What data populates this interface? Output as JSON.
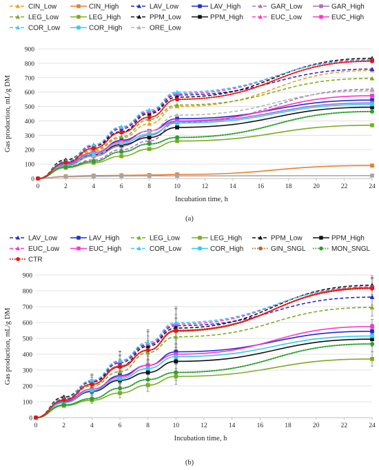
{
  "chart_data": [
    {
      "type": "line",
      "panel_label": "(a)",
      "xlabel": "Incubation time, h",
      "ylabel": "Gas production, mL/g DM",
      "xlim": [
        0,
        24
      ],
      "ylim": [
        0,
        900
      ],
      "xticks": [
        0,
        2,
        4,
        6,
        8,
        10,
        12,
        14,
        16,
        18,
        20,
        22,
        24
      ],
      "yticks": [
        0,
        100,
        200,
        300,
        400,
        500,
        600,
        700,
        800,
        900
      ],
      "x": [
        0,
        2,
        4,
        6,
        8,
        10,
        24
      ],
      "legend_position": "top",
      "series": [
        {
          "name": "CIN_Low",
          "color": "#f39c1f",
          "dash": "dash",
          "marker": "triangle",
          "values": [
            0,
            95,
            190,
            280,
            380,
            500,
            750
          ]
        },
        {
          "name": "CIN_High",
          "color": "#ed7d31",
          "dash": "solid",
          "marker": "square",
          "values": [
            0,
            15,
            20,
            22,
            24,
            28,
            90
          ]
        },
        {
          "name": "LAV_Low",
          "color": "#1f2bd6",
          "dash": "dash",
          "marker": "triangle",
          "values": [
            0,
            115,
            225,
            345,
            460,
            580,
            760
          ]
        },
        {
          "name": "LAV_High",
          "color": "#1f2bd6",
          "dash": "solid",
          "marker": "square",
          "values": [
            0,
            100,
            170,
            265,
            330,
            415,
            545
          ]
        },
        {
          "name": "GAR_Low",
          "color": "#a76fc4",
          "dash": "dash",
          "marker": "triangle",
          "values": [
            0,
            80,
            130,
            200,
            260,
            390,
            620
          ]
        },
        {
          "name": "GAR_High",
          "color": "#a76fc4",
          "dash": "solid",
          "marker": "square",
          "values": [
            0,
            90,
            155,
            225,
            300,
            395,
            525
          ]
        },
        {
          "name": "LEG_Low",
          "color": "#7aab22",
          "dash": "dash",
          "marker": "triangle",
          "values": [
            0,
            105,
            200,
            290,
            410,
            510,
            695
          ]
        },
        {
          "name": "LEG_High",
          "color": "#7aab22",
          "dash": "solid",
          "marker": "square",
          "values": [
            0,
            75,
            110,
            155,
            205,
            260,
            370
          ]
        },
        {
          "name": "PPM_Low",
          "color": "#111111",
          "dash": "dash",
          "marker": "triangle",
          "values": [
            0,
            130,
            225,
            325,
            450,
            565,
            835
          ]
        },
        {
          "name": "PPM_High",
          "color": "#111111",
          "dash": "solid",
          "marker": "square",
          "values": [
            0,
            95,
            165,
            235,
            285,
            355,
            495
          ]
        },
        {
          "name": "EUC_Low",
          "color": "#ff33cc",
          "dash": "dash",
          "marker": "triangle",
          "values": [
            0,
            120,
            230,
            355,
            465,
            590,
            825
          ]
        },
        {
          "name": "EUC_High",
          "color": "#ff33cc",
          "dash": "solid",
          "marker": "square",
          "values": [
            0,
            105,
            180,
            255,
            330,
            400,
            575
          ]
        },
        {
          "name": "COR_Low",
          "color": "#33ccf2",
          "dash": "dash",
          "marker": "triangle",
          "values": [
            0,
            120,
            235,
            360,
            475,
            600,
            820
          ]
        },
        {
          "name": "COR_High",
          "color": "#33ccf2",
          "dash": "solid",
          "marker": "square",
          "values": [
            0,
            95,
            170,
            245,
            310,
            385,
            515
          ]
        },
        {
          "name": "ORE_Low",
          "color": "#b3b3b3",
          "dash": "dash",
          "marker": "triangle",
          "values": [
            0,
            85,
            160,
            250,
            330,
            440,
            610
          ]
        },
        {
          "name": "",
          "color": "#a6a6a6",
          "dash": "solid",
          "marker": "square",
          "values": [
            0,
            12,
            15,
            17,
            18,
            18,
            20
          ]
        },
        {
          "name": "",
          "color": "#2ca02c",
          "dash": "dot",
          "marker": "circle",
          "values": [
            0,
            80,
            120,
            185,
            240,
            285,
            465
          ]
        },
        {
          "name": "",
          "color": "#ee1111",
          "dash": "dot",
          "marker": "circle",
          "values": [
            0,
            110,
            210,
            320,
            425,
            550,
            815
          ]
        }
      ]
    },
    {
      "type": "line",
      "panel_label": "(b)",
      "xlabel": "Incubation time, h",
      "ylabel": "Gas production, mL/g DM",
      "xlim": [
        0,
        24
      ],
      "ylim": [
        0,
        900
      ],
      "xticks": [
        0,
        2,
        4,
        6,
        8,
        10,
        12,
        14,
        16,
        18,
        20,
        22,
        24
      ],
      "yticks": [
        0,
        100,
        200,
        300,
        400,
        500,
        600,
        700,
        800,
        900
      ],
      "x": [
        0,
        2,
        4,
        6,
        8,
        10,
        24
      ],
      "legend_position": "top",
      "error_bars": "gray vertical bars with caps",
      "series": [
        {
          "name": "LAV_Low",
          "color": "#1f2bd6",
          "dash": "dash",
          "marker": "triangle",
          "values": [
            0,
            115,
            225,
            345,
            460,
            580,
            760
          ],
          "err": [
            0,
            10,
            30,
            45,
            55,
            70,
            50
          ]
        },
        {
          "name": "LAV_High",
          "color": "#1f2bd6",
          "dash": "solid",
          "marker": "square",
          "values": [
            0,
            100,
            170,
            265,
            330,
            415,
            545
          ],
          "err": [
            0,
            10,
            25,
            35,
            40,
            45,
            45
          ]
        },
        {
          "name": "LEG_Low",
          "color": "#7aab22",
          "dash": "dash",
          "marker": "triangle",
          "values": [
            0,
            105,
            200,
            290,
            410,
            510,
            695
          ],
          "err": [
            0,
            10,
            30,
            45,
            60,
            70,
            55
          ]
        },
        {
          "name": "LEG_High",
          "color": "#7aab22",
          "dash": "solid",
          "marker": "square",
          "values": [
            0,
            75,
            110,
            155,
            205,
            260,
            370
          ],
          "err": [
            0,
            10,
            20,
            30,
            40,
            50,
            45
          ]
        },
        {
          "name": "PPM_Low",
          "color": "#111111",
          "dash": "dash",
          "marker": "triangle",
          "values": [
            0,
            130,
            225,
            325,
            450,
            565,
            835
          ],
          "err": [
            0,
            12,
            40,
            70,
            90,
            120,
            60
          ]
        },
        {
          "name": "PPM_High",
          "color": "#111111",
          "dash": "solid",
          "marker": "square",
          "values": [
            0,
            95,
            165,
            235,
            285,
            355,
            495
          ],
          "err": [
            0,
            10,
            25,
            35,
            40,
            45,
            45
          ]
        },
        {
          "name": "EUC_Low",
          "color": "#ff33cc",
          "dash": "dash",
          "marker": "triangle",
          "values": [
            0,
            120,
            230,
            355,
            465,
            590,
            825
          ],
          "err": [
            0,
            12,
            40,
            60,
            80,
            100,
            60
          ]
        },
        {
          "name": "EUC_High",
          "color": "#ff33cc",
          "dash": "solid",
          "marker": "square",
          "values": [
            0,
            105,
            180,
            255,
            330,
            400,
            575
          ],
          "err": [
            0,
            10,
            25,
            35,
            40,
            45,
            45
          ]
        },
        {
          "name": "COR_Low",
          "color": "#33ccf2",
          "dash": "dash",
          "marker": "triangle",
          "values": [
            0,
            120,
            235,
            360,
            475,
            600,
            820
          ],
          "err": [
            0,
            12,
            40,
            60,
            80,
            100,
            60
          ]
        },
        {
          "name": "COR_High",
          "color": "#33ccf2",
          "dash": "solid",
          "marker": "square",
          "values": [
            0,
            95,
            170,
            245,
            310,
            385,
            515
          ],
          "err": [
            0,
            10,
            25,
            35,
            40,
            45,
            45
          ]
        },
        {
          "name": "GIN_SNGL",
          "color": "#c0602a",
          "dash": "dot",
          "marker": "circle",
          "values": [
            0,
            110,
            210,
            325,
            425,
            545,
            820
          ],
          "err": [
            0,
            10,
            30,
            45,
            60,
            80,
            60
          ]
        },
        {
          "name": "MON_SNGL",
          "color": "#2ca02c",
          "dash": "dot",
          "marker": "circle",
          "values": [
            0,
            80,
            120,
            185,
            240,
            285,
            465
          ],
          "err": [
            0,
            10,
            20,
            30,
            40,
            50,
            50
          ]
        },
        {
          "name": "CTR",
          "color": "#ee1111",
          "dash": "dot",
          "marker": "circle",
          "values": [
            0,
            110,
            210,
            320,
            425,
            550,
            815
          ],
          "err": [
            0,
            10,
            30,
            45,
            60,
            80,
            60
          ]
        }
      ]
    }
  ]
}
